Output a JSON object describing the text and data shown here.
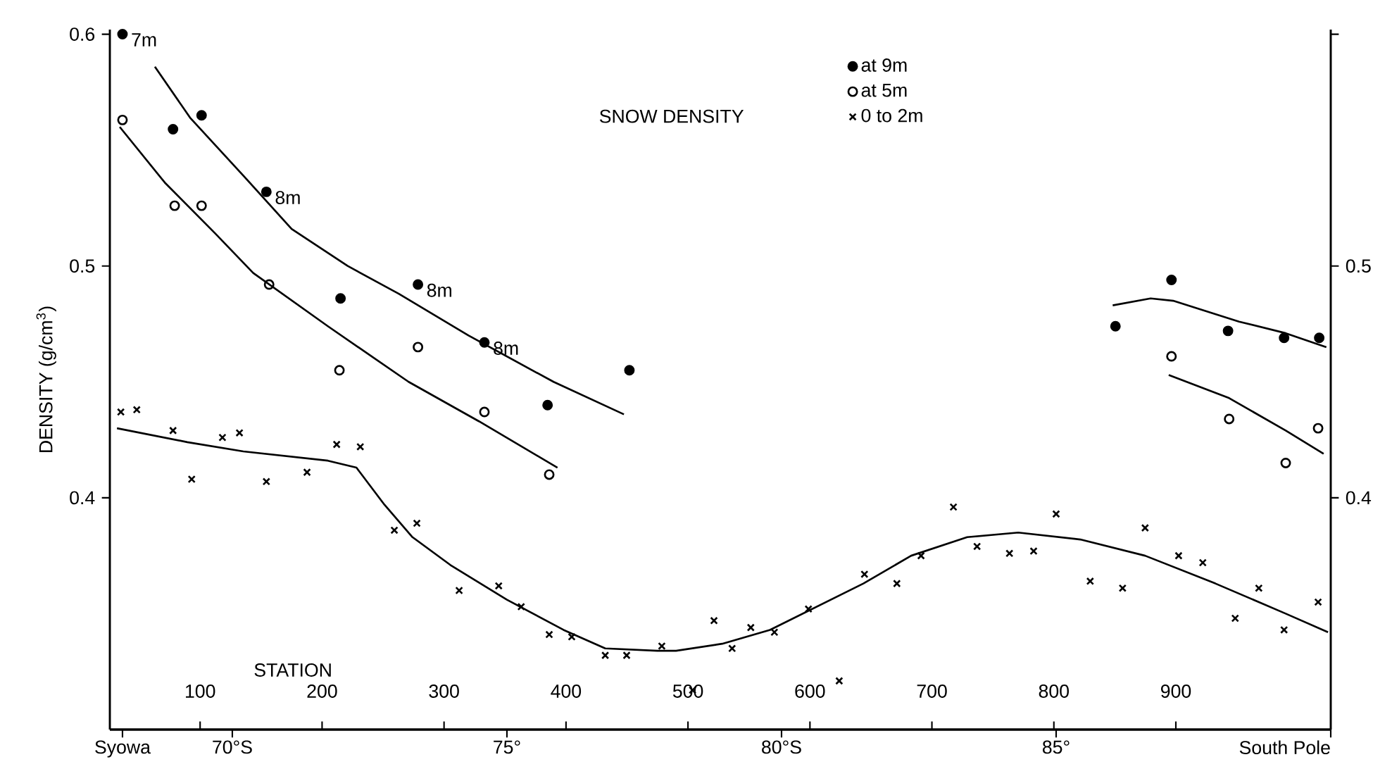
{
  "chart_data": {
    "type": "scatter",
    "title": "SNOW DENSITY",
    "ylabel": "DENSITY (g/cm$^{3}$)",
    "x2label": "STATION",
    "xlim": [
      67.77,
      90
    ],
    "ylim": [
      0.3,
      0.602
    ],
    "y2lim": [
      0.3,
      0.602
    ],
    "x2lim": [
      26,
      1027
    ],
    "x2ticks": [
      100,
      200,
      300,
      400,
      500,
      600,
      700,
      800,
      900
    ],
    "xticks": [
      {
        "value": 68,
        "label": "Syowa"
      },
      {
        "value": 70,
        "label": "70°S"
      },
      {
        "value": 75,
        "label": "75°"
      },
      {
        "value": 80,
        "label": "80°S"
      },
      {
        "value": 85,
        "label": "85°"
      },
      {
        "value": 90,
        "label": "South Pole"
      }
    ],
    "yticks": [
      0.4,
      0.5,
      0.6
    ],
    "y2ticks": [
      0.4,
      0.5,
      {
        "value": 0.6,
        "label": null
      }
    ],
    "legend": "top",
    "series": [
      {
        "name": "at 9m",
        "marker": "circle",
        "color": "#000000",
        "x": [
          68.0,
          68.92,
          69.44,
          70.62,
          71.97,
          73.38,
          74.59,
          75.74,
          77.23,
          86.08,
          87.1,
          88.13,
          89.15,
          89.79
        ],
        "values": [
          0.6,
          0.559,
          0.565,
          0.532,
          0.486,
          0.492,
          0.467,
          0.44,
          0.455,
          0.474,
          0.494,
          0.472,
          0.469,
          0.469
        ]
      },
      {
        "name": "at 5m",
        "marker": "open circle",
        "color": "#000000",
        "x": [
          68.0,
          68.95,
          69.44,
          70.67,
          71.95,
          73.38,
          74.59,
          75.77,
          87.1,
          88.15,
          89.18,
          89.77
        ],
        "values": [
          0.563,
          0.526,
          0.526,
          0.492,
          0.455,
          0.465,
          0.437,
          0.41,
          0.461,
          0.434,
          0.415,
          0.43
        ]
      },
      {
        "name": "0 to 2m",
        "marker": "cross",
        "color": "#000000",
        "x": [
          67.97,
          68.26,
          68.92,
          69.26,
          69.82,
          70.13,
          70.62,
          71.36,
          71.9,
          72.33,
          72.95,
          73.36,
          74.13,
          74.85,
          75.26,
          75.77,
          76.18,
          76.79,
          77.18,
          77.82,
          78.38,
          78.77,
          79.1,
          79.44,
          79.87,
          80.49,
          81.05,
          81.51,
          82.1,
          82.54,
          83.13,
          83.56,
          84.15,
          84.59,
          85.0,
          85.62,
          86.21,
          86.62,
          87.23,
          87.67,
          88.26,
          88.69,
          89.15,
          89.77
        ],
        "values": [
          0.437,
          0.438,
          0.429,
          0.408,
          0.426,
          0.428,
          0.407,
          0.411,
          0.423,
          0.422,
          0.386,
          0.389,
          0.36,
          0.362,
          0.353,
          0.341,
          0.34,
          0.332,
          0.332,
          0.336,
          0.317,
          0.347,
          0.335,
          0.344,
          0.342,
          0.352,
          0.321,
          0.367,
          0.363,
          0.375,
          0.396,
          0.379,
          0.376,
          0.377,
          0.393,
          0.364,
          0.361,
          0.387,
          0.375,
          0.372,
          0.348,
          0.361,
          0.343,
          0.355
        ]
      },
      {
        "type": "line",
        "marker": "none",
        "line_style": "solid",
        "color": "#000000",
        "x": [
          68.59,
          69.23,
          70.2,
          71.08,
          72.1,
          73.03,
          74.3,
          75.85,
          77.13
        ],
        "values": [
          0.586,
          0.564,
          0.539,
          0.516,
          0.5,
          0.488,
          0.47,
          0.45,
          0.436
        ]
      },
      {
        "type": "line",
        "marker": "none",
        "line_style": "solid",
        "color": "#000000",
        "x": [
          86.03,
          86.72,
          87.13,
          88.33,
          89.18,
          89.92
        ],
        "values": [
          0.483,
          0.486,
          0.485,
          0.476,
          0.471,
          0.465
        ]
      },
      {
        "type": "line",
        "marker": "none",
        "line_style": "solid",
        "color": "#000000",
        "x": [
          67.95,
          68.77,
          69.69,
          70.38,
          71.74,
          73.21,
          74.49,
          75.92
        ],
        "values": [
          0.56,
          0.536,
          0.514,
          0.497,
          0.474,
          0.45,
          0.433,
          0.413
        ]
      },
      {
        "type": "line",
        "marker": "none",
        "line_style": "solid",
        "color": "#000000",
        "x": [
          87.05,
          88.15,
          89.18,
          89.87
        ],
        "values": [
          0.453,
          0.443,
          0.429,
          0.419
        ]
      },
      {
        "type": "line",
        "marker": "none",
        "line_style": "solid",
        "color": "#000000",
        "x": [
          67.9,
          69.18,
          70.2,
          71.74,
          72.26,
          72.77,
          73.28,
          73.97,
          75.0,
          76.03,
          76.79,
          77.74,
          78.08,
          78.92,
          79.79,
          80.64,
          81.49,
          82.36,
          83.38,
          84.31,
          85.44,
          86.62,
          87.9,
          89.18,
          89.95
        ],
        "values": [
          0.43,
          0.424,
          0.42,
          0.416,
          0.413,
          0.397,
          0.383,
          0.371,
          0.356,
          0.343,
          0.335,
          0.334,
          0.334,
          0.337,
          0.343,
          0.353,
          0.363,
          0.375,
          0.383,
          0.385,
          0.382,
          0.375,
          0.363,
          0.35,
          0.342
        ]
      }
    ],
    "annotations": [
      {
        "text": "7m",
        "x": 68.0,
        "y": 0.6
      },
      {
        "text": "8m",
        "x": 70.62,
        "y": 0.532
      },
      {
        "text": "8m",
        "x": 73.38,
        "y": 0.492
      },
      {
        "text": "8m",
        "x": 74.59,
        "y": 0.467
      }
    ]
  }
}
